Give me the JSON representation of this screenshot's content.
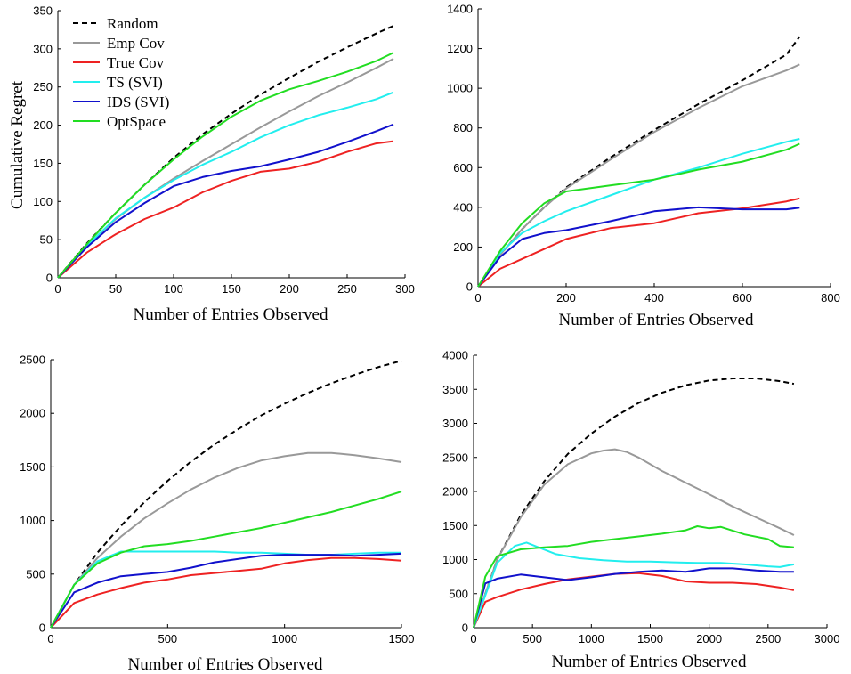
{
  "chart_data": [
    {
      "type": "line",
      "panel": "top-left",
      "xlabel": "Number of Entries Observed",
      "ylabel": "Cumulative Regret",
      "xlim": [
        0,
        300
      ],
      "ylim": [
        0,
        350
      ],
      "xticks": [
        0,
        50,
        100,
        150,
        200,
        250,
        300
      ],
      "yticks": [
        0,
        50,
        100,
        150,
        200,
        250,
        300,
        350
      ],
      "grid": false,
      "legend_position": "top-left",
      "series": [
        {
          "name": "Random",
          "color": "#000000",
          "dash": true,
          "x": [
            0,
            25,
            50,
            75,
            100,
            125,
            150,
            175,
            200,
            225,
            250,
            275,
            290
          ],
          "y": [
            0,
            45,
            85,
            122,
            157,
            188,
            215,
            240,
            262,
            283,
            302,
            320,
            330
          ]
        },
        {
          "name": "Emp Cov",
          "color": "#999999",
          "x": [
            0,
            25,
            50,
            75,
            100,
            125,
            150,
            175,
            200,
            225,
            250,
            275,
            290
          ],
          "y": [
            0,
            42,
            77,
            105,
            130,
            153,
            175,
            197,
            218,
            238,
            256,
            275,
            287
          ]
        },
        {
          "name": "True Cov",
          "color": "#ee2222",
          "x": [
            0,
            25,
            50,
            75,
            100,
            125,
            150,
            175,
            200,
            225,
            250,
            275,
            290
          ],
          "y": [
            0,
            33,
            57,
            77,
            92,
            112,
            127,
            139,
            143,
            152,
            165,
            176,
            179
          ]
        },
        {
          "name": "TS (SVI)",
          "color": "#22eeee",
          "x": [
            0,
            25,
            50,
            75,
            100,
            125,
            150,
            175,
            200,
            225,
            250,
            275,
            290
          ],
          "y": [
            0,
            42,
            78,
            105,
            128,
            148,
            165,
            184,
            200,
            213,
            223,
            234,
            243
          ]
        },
        {
          "name": "IDS (SVI)",
          "color": "#1111cc",
          "x": [
            0,
            25,
            50,
            75,
            100,
            125,
            150,
            175,
            200,
            225,
            250,
            275,
            290
          ],
          "y": [
            0,
            40,
            73,
            98,
            120,
            132,
            140,
            146,
            155,
            165,
            178,
            192,
            201
          ]
        },
        {
          "name": "OptSpace",
          "color": "#22dd22",
          "x": [
            0,
            25,
            50,
            75,
            100,
            125,
            150,
            175,
            200,
            225,
            250,
            275,
            290
          ],
          "y": [
            0,
            44,
            85,
            122,
            155,
            185,
            211,
            232,
            247,
            258,
            270,
            284,
            295
          ]
        }
      ]
    },
    {
      "type": "line",
      "panel": "top-right",
      "xlabel": "Number of Entries Observed",
      "ylabel": "",
      "xlim": [
        0,
        800
      ],
      "ylim": [
        0,
        1400
      ],
      "xticks": [
        0,
        200,
        400,
        600,
        800
      ],
      "yticks": [
        0,
        200,
        400,
        600,
        800,
        1000,
        1200,
        1400
      ],
      "grid": false,
      "series": [
        {
          "color": "#000000",
          "dash": true,
          "x": [
            0,
            50,
            100,
            150,
            200,
            300,
            400,
            500,
            600,
            700,
            730
          ],
          "y": [
            0,
            160,
            290,
            400,
            500,
            650,
            790,
            920,
            1040,
            1170,
            1260
          ]
        },
        {
          "color": "#999999",
          "x": [
            0,
            50,
            100,
            150,
            200,
            300,
            400,
            500,
            600,
            700,
            730
          ],
          "y": [
            0,
            160,
            290,
            400,
            495,
            640,
            780,
            900,
            1010,
            1090,
            1120
          ]
        },
        {
          "color": "#ee2222",
          "x": [
            0,
            50,
            100,
            150,
            200,
            300,
            400,
            500,
            600,
            700,
            730
          ],
          "y": [
            0,
            90,
            140,
            190,
            240,
            295,
            320,
            370,
            395,
            430,
            445
          ]
        },
        {
          "color": "#22eeee",
          "x": [
            0,
            50,
            100,
            150,
            200,
            300,
            400,
            500,
            600,
            700,
            730
          ],
          "y": [
            0,
            170,
            270,
            330,
            380,
            460,
            540,
            600,
            670,
            730,
            745
          ]
        },
        {
          "color": "#1111cc",
          "x": [
            0,
            50,
            100,
            150,
            200,
            300,
            400,
            500,
            600,
            700,
            730
          ],
          "y": [
            0,
            150,
            240,
            270,
            285,
            330,
            380,
            400,
            390,
            390,
            398
          ]
        },
        {
          "color": "#22dd22",
          "x": [
            0,
            50,
            100,
            150,
            200,
            300,
            400,
            500,
            600,
            700,
            730
          ],
          "y": [
            0,
            180,
            320,
            420,
            480,
            510,
            540,
            590,
            630,
            690,
            720
          ]
        }
      ]
    },
    {
      "type": "line",
      "panel": "bottom-left",
      "xlabel": "Number of Entries Observed",
      "ylabel": "",
      "xlim": [
        0,
        1500
      ],
      "ylim": [
        0,
        2500
      ],
      "xticks": [
        0,
        500,
        1000,
        1500
      ],
      "yticks": [
        0,
        500,
        1000,
        1500,
        2000,
        2500
      ],
      "grid": false,
      "series": [
        {
          "color": "#000000",
          "dash": true,
          "x": [
            0,
            100,
            200,
            300,
            400,
            500,
            600,
            700,
            800,
            900,
            1000,
            1100,
            1200,
            1300,
            1400,
            1500
          ],
          "y": [
            0,
            400,
            700,
            950,
            1170,
            1370,
            1550,
            1710,
            1850,
            1980,
            2090,
            2190,
            2280,
            2360,
            2430,
            2490
          ]
        },
        {
          "color": "#999999",
          "x": [
            0,
            100,
            200,
            300,
            400,
            500,
            600,
            700,
            800,
            900,
            1000,
            1100,
            1200,
            1300,
            1400,
            1500
          ],
          "y": [
            0,
            400,
            650,
            850,
            1020,
            1160,
            1290,
            1400,
            1490,
            1560,
            1600,
            1630,
            1630,
            1610,
            1580,
            1545
          ]
        },
        {
          "color": "#ee2222",
          "x": [
            0,
            100,
            200,
            300,
            400,
            500,
            600,
            700,
            800,
            900,
            1000,
            1100,
            1200,
            1300,
            1400,
            1500
          ],
          "y": [
            0,
            230,
            310,
            370,
            420,
            450,
            490,
            510,
            530,
            550,
            600,
            630,
            650,
            650,
            640,
            625
          ]
        },
        {
          "color": "#22eeee",
          "x": [
            0,
            100,
            200,
            300,
            400,
            500,
            600,
            700,
            800,
            900,
            1000,
            1100,
            1200,
            1300,
            1400,
            1500
          ],
          "y": [
            0,
            400,
            620,
            710,
            710,
            710,
            710,
            710,
            700,
            700,
            690,
            680,
            680,
            690,
            700,
            700
          ]
        },
        {
          "color": "#1111cc",
          "x": [
            0,
            100,
            200,
            300,
            400,
            500,
            600,
            700,
            800,
            900,
            1000,
            1100,
            1200,
            1300,
            1400,
            1500
          ],
          "y": [
            0,
            330,
            420,
            480,
            500,
            520,
            560,
            610,
            640,
            670,
            680,
            680,
            680,
            670,
            680,
            690
          ]
        },
        {
          "color": "#22dd22",
          "x": [
            0,
            100,
            200,
            300,
            400,
            500,
            600,
            700,
            800,
            900,
            1000,
            1100,
            1200,
            1300,
            1400,
            1500
          ],
          "y": [
            0,
            400,
            600,
            700,
            760,
            780,
            810,
            850,
            890,
            930,
            980,
            1030,
            1080,
            1140,
            1200,
            1270
          ]
        }
      ]
    },
    {
      "type": "line",
      "panel": "bottom-right",
      "xlabel": "Number of Entries Observed",
      "ylabel": "",
      "xlim": [
        0,
        3000
      ],
      "ylim": [
        0,
        4000
      ],
      "xticks": [
        0,
        500,
        1000,
        1500,
        2000,
        2500,
        3000
      ],
      "yticks": [
        0,
        500,
        1000,
        1500,
        2000,
        2500,
        3000,
        3500,
        4000
      ],
      "grid": false,
      "series": [
        {
          "color": "#000000",
          "dash": true,
          "x": [
            0,
            200,
            400,
            600,
            800,
            1000,
            1200,
            1400,
            1600,
            1800,
            2000,
            2200,
            2400,
            2600,
            2720
          ],
          "y": [
            0,
            1000,
            1650,
            2150,
            2550,
            2850,
            3100,
            3300,
            3450,
            3560,
            3630,
            3660,
            3660,
            3620,
            3580
          ]
        },
        {
          "color": "#999999",
          "x": [
            0,
            200,
            400,
            600,
            800,
            1000,
            1100,
            1200,
            1300,
            1400,
            1600,
            1800,
            2000,
            2200,
            2400,
            2600,
            2720
          ],
          "y": [
            0,
            1000,
            1620,
            2100,
            2400,
            2560,
            2600,
            2620,
            2580,
            2500,
            2300,
            2130,
            1960,
            1780,
            1620,
            1460,
            1360
          ]
        },
        {
          "color": "#ee2222",
          "x": [
            0,
            100,
            200,
            400,
            600,
            800,
            1000,
            1200,
            1400,
            1600,
            1800,
            2000,
            2200,
            2400,
            2600,
            2720
          ],
          "y": [
            0,
            380,
            450,
            560,
            640,
            710,
            750,
            790,
            800,
            760,
            680,
            660,
            660,
            640,
            590,
            550
          ]
        },
        {
          "color": "#22eeee",
          "x": [
            0,
            200,
            350,
            450,
            550,
            700,
            900,
            1100,
            1300,
            1500,
            1700,
            1900,
            2100,
            2300,
            2500,
            2600,
            2720
          ],
          "y": [
            0,
            950,
            1200,
            1250,
            1180,
            1080,
            1020,
            990,
            970,
            970,
            960,
            950,
            950,
            930,
            900,
            890,
            930
          ]
        },
        {
          "color": "#1111cc",
          "x": [
            0,
            100,
            200,
            400,
            600,
            800,
            1000,
            1200,
            1400,
            1600,
            1800,
            2000,
            2200,
            2400,
            2600,
            2720
          ],
          "y": [
            0,
            650,
            720,
            780,
            740,
            700,
            740,
            790,
            820,
            840,
            820,
            870,
            870,
            840,
            820,
            820
          ]
        },
        {
          "color": "#22dd22",
          "x": [
            0,
            100,
            200,
            400,
            600,
            800,
            1000,
            1200,
            1400,
            1600,
            1800,
            1900,
            2000,
            2100,
            2300,
            2500,
            2600,
            2720
          ],
          "y": [
            0,
            750,
            1050,
            1150,
            1180,
            1200,
            1260,
            1300,
            1340,
            1380,
            1430,
            1490,
            1460,
            1480,
            1370,
            1300,
            1200,
            1180
          ]
        }
      ]
    }
  ]
}
